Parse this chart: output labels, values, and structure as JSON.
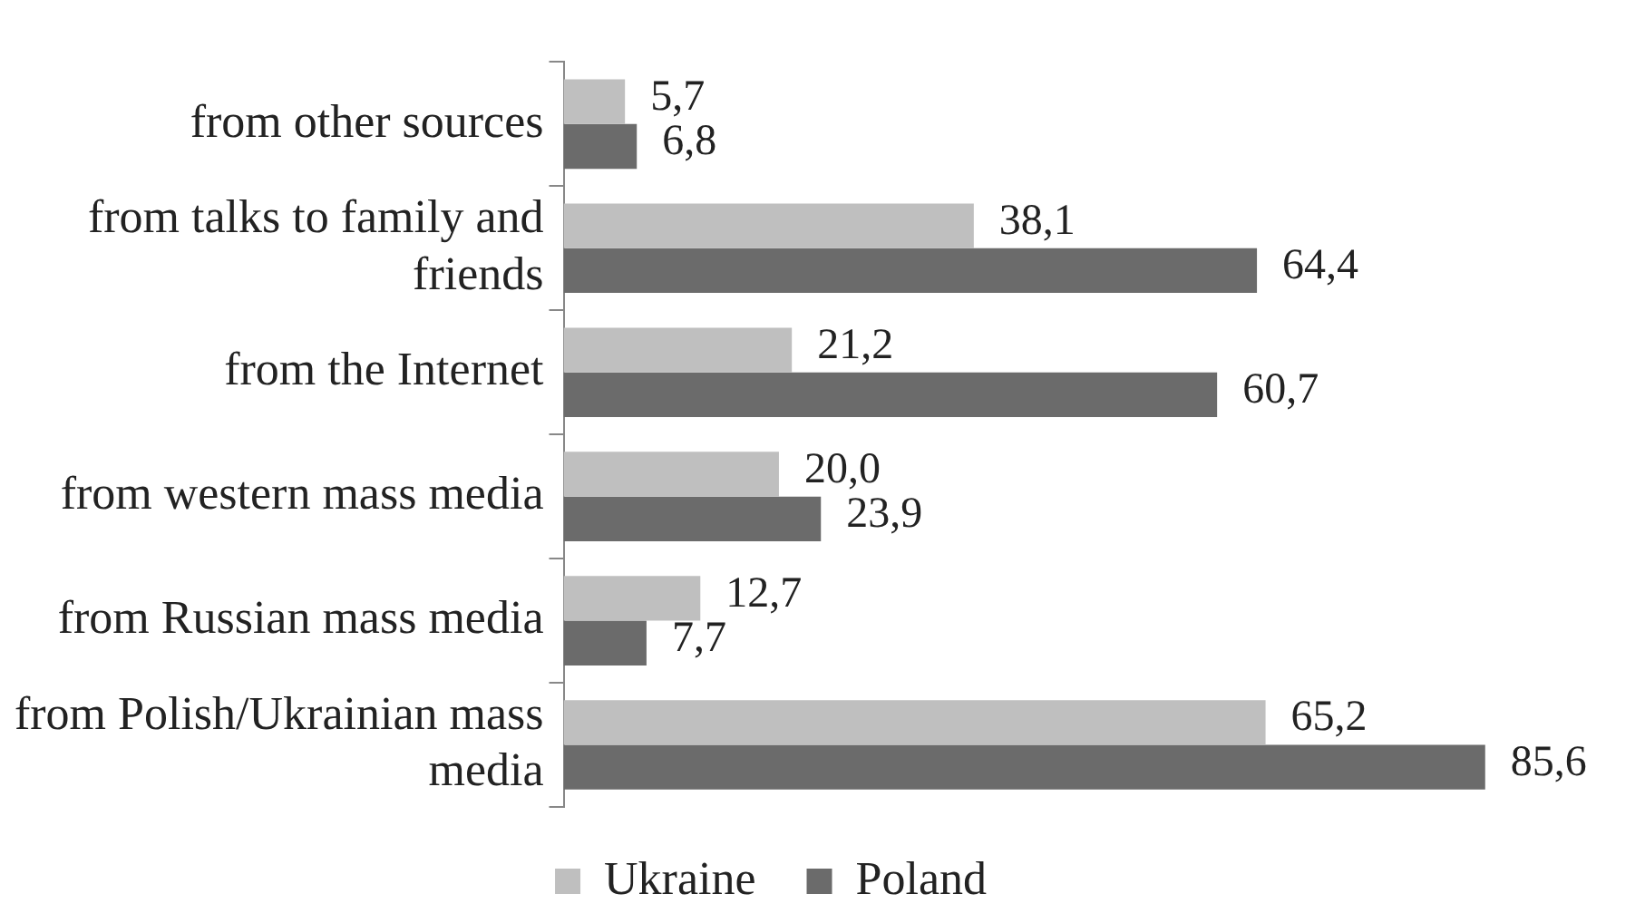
{
  "chart_data": {
    "type": "bar",
    "orientation": "horizontal",
    "categories": [
      "from other sources",
      "from talks to family and friends",
      "from the Internet",
      "from western mass media",
      "from Russian mass media",
      "from Polish/Ukrainian mass media"
    ],
    "series": [
      {
        "name": "Ukraine",
        "color": "#bfbfbf",
        "values": [
          5.7,
          38.1,
          21.2,
          20.0,
          12.7,
          65.2
        ],
        "value_labels": [
          "5,7",
          "38,1",
          "21,2",
          "20,0",
          "12,7",
          "65,2"
        ]
      },
      {
        "name": "Poland",
        "color": "#6b6b6b",
        "values": [
          6.8,
          64.4,
          60.7,
          23.9,
          7.7,
          85.6
        ],
        "value_labels": [
          "6,8",
          "64,4",
          "60,7",
          "23,9",
          "7,7",
          "85,6"
        ]
      }
    ],
    "legend": "bottom",
    "grid": false
  }
}
